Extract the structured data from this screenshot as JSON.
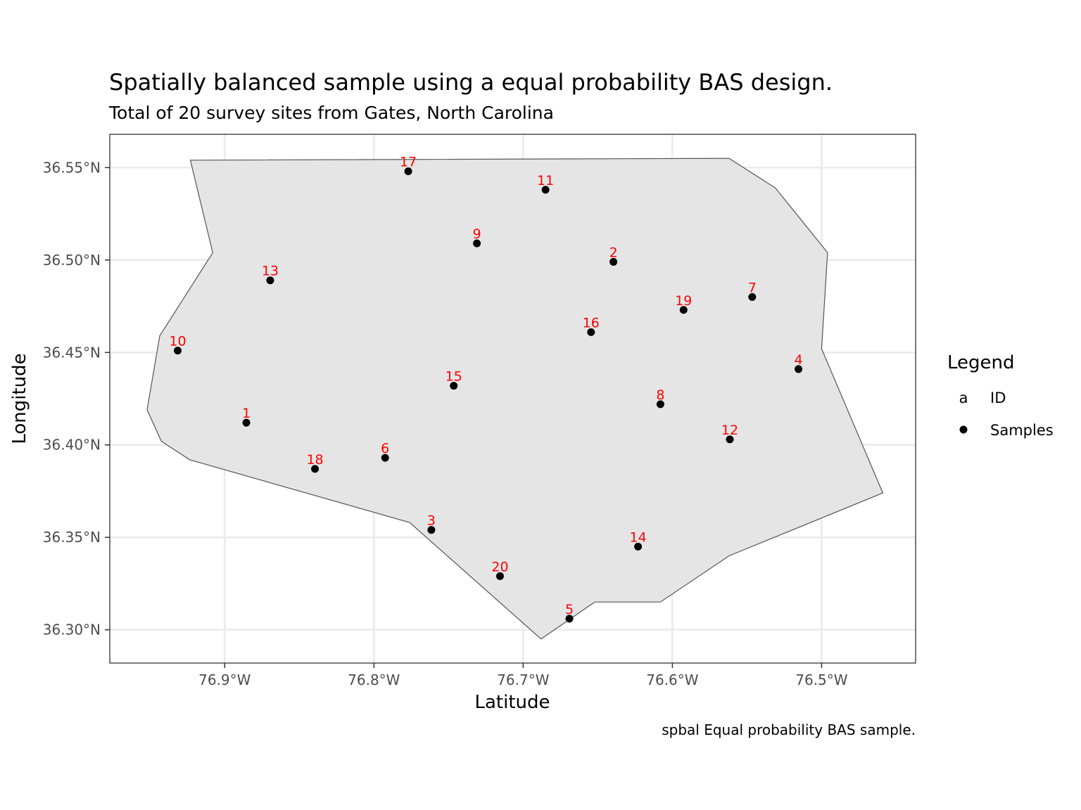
{
  "chart_data": {
    "type": "scatter",
    "title": "Spatially balanced sample using a equal probability BAS design.",
    "subtitle": "Total of 20 survey sites from Gates, North Carolina",
    "caption": "spbal Equal probability BAS sample.",
    "xlabel": "Latitude",
    "ylabel": "Longitude",
    "xlim": [
      -76.977,
      -76.437
    ],
    "ylim": [
      36.282,
      36.568
    ],
    "x_ticks": [
      -76.9,
      -76.8,
      -76.7,
      -76.6,
      -76.5
    ],
    "x_tick_labels": [
      "76.9°W",
      "76.8°W",
      "76.7°W",
      "76.6°W",
      "76.5°W"
    ],
    "y_ticks": [
      36.3,
      36.35,
      36.4,
      36.45,
      36.5,
      36.55
    ],
    "y_tick_labels": [
      "36.30°N",
      "36.35°N",
      "36.40°N",
      "36.45°N",
      "36.50°N",
      "36.55°N"
    ],
    "grid": true,
    "legend": {
      "title": "Legend",
      "placement": "right",
      "entries": [
        {
          "key": "a",
          "label": "ID",
          "color": "#ff0000"
        },
        {
          "label": "Samples",
          "color": "#000000"
        }
      ]
    },
    "boundary": {
      "fill": "#e5e5e5",
      "stroke": "#555555",
      "vertices": [
        [
          -76.923,
          36.554
        ],
        [
          -76.908,
          36.504
        ],
        [
          -76.9435,
          36.459
        ],
        [
          -76.952,
          36.419
        ],
        [
          -76.9425,
          36.402
        ],
        [
          -76.9235,
          36.392
        ],
        [
          -76.776,
          36.358
        ],
        [
          -76.688,
          36.295
        ],
        [
          -76.652,
          36.315
        ],
        [
          -76.608,
          36.315
        ],
        [
          -76.562,
          36.34
        ],
        [
          -76.459,
          36.374
        ],
        [
          -76.5,
          36.452
        ],
        [
          -76.496,
          36.504
        ],
        [
          -76.531,
          36.539
        ],
        [
          -76.562,
          36.555
        ]
      ]
    },
    "series": [
      {
        "name": "Samples",
        "color": "#000000",
        "label_color": "#ff0000",
        "points": [
          {
            "id": "1",
            "x": -76.8855,
            "y": 36.412
          },
          {
            "id": "2",
            "x": -76.6395,
            "y": 36.499
          },
          {
            "id": "3",
            "x": -76.7615,
            "y": 36.354
          },
          {
            "id": "4",
            "x": -76.5155,
            "y": 36.441
          },
          {
            "id": "5",
            "x": -76.669,
            "y": 36.306
          },
          {
            "id": "6",
            "x": -76.7925,
            "y": 36.393
          },
          {
            "id": "7",
            "x": -76.5465,
            "y": 36.48
          },
          {
            "id": "8",
            "x": -76.608,
            "y": 36.422
          },
          {
            "id": "9",
            "x": -76.731,
            "y": 36.509
          },
          {
            "id": "10",
            "x": -76.9315,
            "y": 36.451
          },
          {
            "id": "11",
            "x": -76.685,
            "y": 36.538
          },
          {
            "id": "12",
            "x": -76.5615,
            "y": 36.403
          },
          {
            "id": "13",
            "x": -76.8695,
            "y": 36.489
          },
          {
            "id": "14",
            "x": -76.623,
            "y": 36.345
          },
          {
            "id": "15",
            "x": -76.7465,
            "y": 36.432
          },
          {
            "id": "16",
            "x": -76.6545,
            "y": 36.461
          },
          {
            "id": "17",
            "x": -76.777,
            "y": 36.548
          },
          {
            "id": "18",
            "x": -76.8395,
            "y": 36.387
          },
          {
            "id": "19",
            "x": -76.5925,
            "y": 36.473
          },
          {
            "id": "20",
            "x": -76.7155,
            "y": 36.329
          }
        ]
      }
    ]
  }
}
